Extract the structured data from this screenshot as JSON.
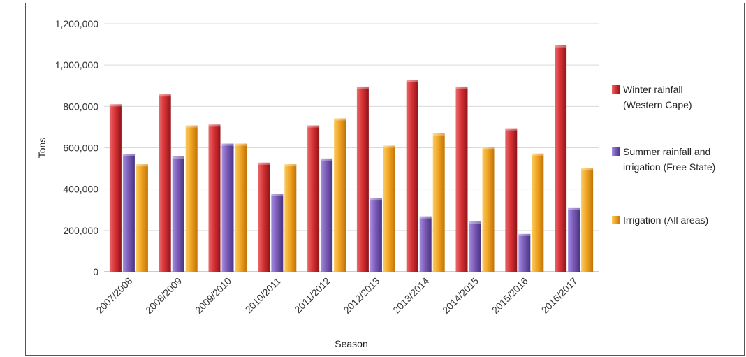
{
  "chart_data": {
    "type": "bar",
    "title": "",
    "xlabel": "Season",
    "ylabel": "Tons",
    "ylim": [
      0,
      1200000
    ],
    "yticks": [
      0,
      200000,
      400000,
      600000,
      800000,
      1000000,
      1200000
    ],
    "ytick_labels": [
      "0",
      "200,000",
      "400,000",
      "600,000",
      "800,000",
      "1,000,000",
      "1,200,000"
    ],
    "grid": true,
    "legend_position": "right",
    "categories": [
      "2007/2008",
      "2008/2009",
      "2009/2010",
      "2010/2011",
      "2011/2012",
      "2012/2013",
      "2013/2014",
      "2014/2015",
      "2015/2016",
      "2016/2017"
    ],
    "series": [
      {
        "name": "Winter rainfall (Western Cape)",
        "legend_lines": [
          "Winter rainfall",
          "(Western Cape)"
        ],
        "color": "#c8262b",
        "values": [
          810000,
          858000,
          712000,
          528000,
          708000,
          896000,
          926000,
          896000,
          694000,
          1096000
        ]
      },
      {
        "name": "Summer rainfall and irrigation (Free State)",
        "legend_lines": [
          "Summer rainfall and",
          "irrigation (Free State)"
        ],
        "color": "#7b5cb8",
        "values": [
          568000,
          558000,
          620000,
          378000,
          548000,
          358000,
          268000,
          243000,
          183000,
          308000
        ]
      },
      {
        "name": "Irrigation (All areas)",
        "legend_lines": [
          "Irrigation (All areas)"
        ],
        "color": "#f0a020",
        "values": [
          520000,
          708000,
          620000,
          520000,
          742000,
          610000,
          670000,
          604000,
          572000,
          500000
        ]
      }
    ]
  }
}
